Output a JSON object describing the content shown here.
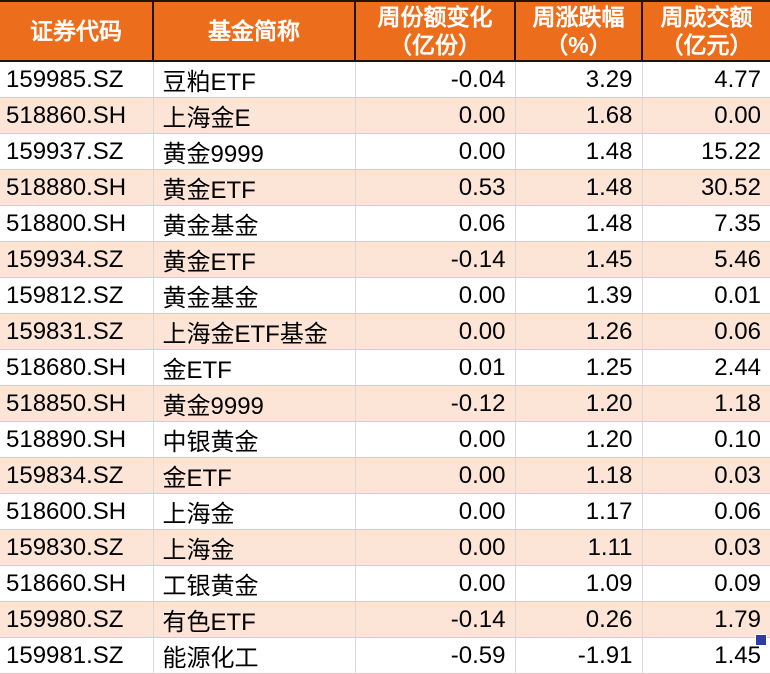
{
  "colors": {
    "header_bg": "#EC6E1C",
    "header_text": "#FFFFFF",
    "row_bg": "#FFFFFF",
    "row_alt_bg": "#FCE4D6",
    "header_border": "#201408",
    "vertical_gridline": "#D9D9D9",
    "horizontal_gridline": "#F0C6A3",
    "cell_text": "#000000",
    "fill_handle": "#2D3E9E"
  },
  "chart_data": {
    "type": "table",
    "columns": [
      "证券代码",
      "基金简称",
      "周份额变化\n（亿份）",
      "周涨跌幅\n（%）",
      "周成交额\n（亿元）"
    ],
    "column_keys": [
      "code",
      "name",
      "share_change",
      "pct_change",
      "turnover"
    ],
    "rows": [
      {
        "code": "159985.SZ",
        "name": "豆粕ETF",
        "share_change": "-0.04",
        "pct_change": "3.29",
        "turnover": "4.77"
      },
      {
        "code": "518860.SH",
        "name": "上海金E",
        "share_change": "0.00",
        "pct_change": "1.68",
        "turnover": "0.00"
      },
      {
        "code": "159937.SZ",
        "name": "黄金9999",
        "share_change": "0.00",
        "pct_change": "1.48",
        "turnover": "15.22"
      },
      {
        "code": "518880.SH",
        "name": "黄金ETF",
        "share_change": "0.53",
        "pct_change": "1.48",
        "turnover": "30.52"
      },
      {
        "code": "518800.SH",
        "name": "黄金基金",
        "share_change": "0.06",
        "pct_change": "1.48",
        "turnover": "7.35"
      },
      {
        "code": "159934.SZ",
        "name": "黄金ETF",
        "share_change": "-0.14",
        "pct_change": "1.45",
        "turnover": "5.46"
      },
      {
        "code": "159812.SZ",
        "name": "黄金基金",
        "share_change": "0.00",
        "pct_change": "1.39",
        "turnover": "0.01"
      },
      {
        "code": "159831.SZ",
        "name": "上海金ETF基金",
        "share_change": "0.00",
        "pct_change": "1.26",
        "turnover": "0.06"
      },
      {
        "code": "518680.SH",
        "name": "金ETF",
        "share_change": "0.01",
        "pct_change": "1.25",
        "turnover": "2.44"
      },
      {
        "code": "518850.SH",
        "name": "黄金9999",
        "share_change": "-0.12",
        "pct_change": "1.20",
        "turnover": "1.18"
      },
      {
        "code": "518890.SH",
        "name": "中银黄金",
        "share_change": "0.00",
        "pct_change": "1.20",
        "turnover": "0.10"
      },
      {
        "code": "159834.SZ",
        "name": "金ETF",
        "share_change": "0.00",
        "pct_change": "1.18",
        "turnover": "0.03"
      },
      {
        "code": "518600.SH",
        "name": "上海金",
        "share_change": "0.00",
        "pct_change": "1.17",
        "turnover": "0.06"
      },
      {
        "code": "159830.SZ",
        "name": "上海金",
        "share_change": "0.00",
        "pct_change": "1.11",
        "turnover": "0.03"
      },
      {
        "code": "518660.SH",
        "name": "工银黄金",
        "share_change": "0.00",
        "pct_change": "1.09",
        "turnover": "0.09"
      },
      {
        "code": "159980.SZ",
        "name": "有色ETF",
        "share_change": "-0.14",
        "pct_change": "0.26",
        "turnover": "1.79"
      },
      {
        "code": "159981.SZ",
        "name": "能源化工",
        "share_change": "-0.59",
        "pct_change": "-1.91",
        "turnover": "1.45"
      }
    ]
  }
}
